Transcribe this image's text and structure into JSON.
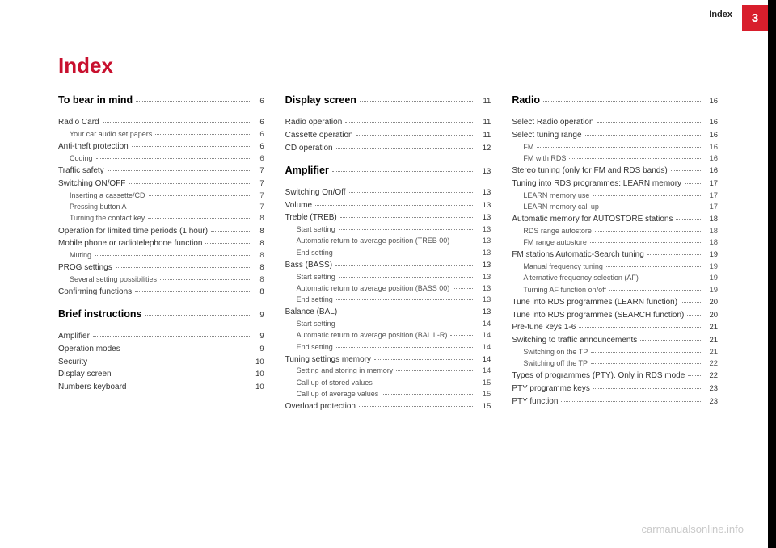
{
  "header": {
    "label": "Index",
    "tab_number": "3"
  },
  "title": "Index",
  "watermark": "carmanualsonline.info",
  "columns": [
    [
      {
        "type": "section",
        "label": "To bear in mind",
        "page": "6"
      },
      {
        "type": "spacer"
      },
      {
        "type": "item",
        "label": "Radio Card",
        "page": "6"
      },
      {
        "type": "sub",
        "label": "Your car audio set papers",
        "page": "6"
      },
      {
        "type": "item",
        "label": "Anti-theft protection",
        "page": "6"
      },
      {
        "type": "sub",
        "label": "Coding",
        "page": "6"
      },
      {
        "type": "item",
        "label": "Traffic safety",
        "page": "7"
      },
      {
        "type": "item",
        "label": "Switching ON/OFF",
        "page": "7"
      },
      {
        "type": "sub",
        "label": "Inserting a cassette/CD",
        "page": "7"
      },
      {
        "type": "sub",
        "label": "Pressing button  A",
        "page": "7"
      },
      {
        "type": "sub",
        "label": "Turning the contact key",
        "page": "8"
      },
      {
        "type": "item",
        "label": "Operation for limited time periods (1 hour)",
        "page": "8"
      },
      {
        "type": "item",
        "label": "Mobile phone or radiotelephone function",
        "page": "8"
      },
      {
        "type": "sub",
        "label": "Muting",
        "page": "8"
      },
      {
        "type": "item",
        "label": "PROG settings",
        "page": "8"
      },
      {
        "type": "sub",
        "label": "Several setting possibilities",
        "page": "8"
      },
      {
        "type": "item",
        "label": "Confirming functions",
        "page": "8"
      },
      {
        "type": "spacer"
      },
      {
        "type": "section",
        "label": "Brief instructions",
        "page": "9"
      },
      {
        "type": "spacer"
      },
      {
        "type": "item",
        "label": "Amplifier",
        "page": "9"
      },
      {
        "type": "item",
        "label": "Operation modes",
        "page": "9"
      },
      {
        "type": "item",
        "label": "Security",
        "page": "10"
      },
      {
        "type": "item",
        "label": "Display screen",
        "page": "10"
      },
      {
        "type": "item",
        "label": "Numbers keyboard",
        "page": "10"
      }
    ],
    [
      {
        "type": "section",
        "label": "Display screen",
        "page": "11"
      },
      {
        "type": "spacer"
      },
      {
        "type": "item",
        "label": "Radio operation",
        "page": "11"
      },
      {
        "type": "item",
        "label": "Cassette operation",
        "page": "11"
      },
      {
        "type": "item",
        "label": "CD operation",
        "page": "12"
      },
      {
        "type": "spacer"
      },
      {
        "type": "section",
        "label": "Amplifier",
        "page": "13"
      },
      {
        "type": "spacer"
      },
      {
        "type": "item",
        "label": "Switching On/Off",
        "page": "13"
      },
      {
        "type": "item",
        "label": "Volume",
        "page": "13"
      },
      {
        "type": "item",
        "label": "Treble (TREB)",
        "page": "13"
      },
      {
        "type": "sub",
        "label": "Start setting",
        "page": "13"
      },
      {
        "type": "sub",
        "label": "Automatic return to average position (TREB 00)",
        "page": "13"
      },
      {
        "type": "sub",
        "label": "End setting",
        "page": "13"
      },
      {
        "type": "item",
        "label": "Bass (BASS)",
        "page": "13"
      },
      {
        "type": "sub",
        "label": "Start setting",
        "page": "13"
      },
      {
        "type": "sub",
        "label": "Automatic return to average position (BASS 00)",
        "page": "13"
      },
      {
        "type": "sub",
        "label": "End setting",
        "page": "13"
      },
      {
        "type": "item",
        "label": "Balance (BAL)",
        "page": "13"
      },
      {
        "type": "sub",
        "label": "Start setting",
        "page": "14"
      },
      {
        "type": "sub",
        "label": "Automatic return to average position (BAL L-R)",
        "page": "14"
      },
      {
        "type": "sub",
        "label": "End setting",
        "page": "14"
      },
      {
        "type": "item",
        "label": "Tuning settings memory",
        "page": "14"
      },
      {
        "type": "sub",
        "label": "Setting and storing in memory",
        "page": "14"
      },
      {
        "type": "sub",
        "label": "Call up of stored values",
        "page": "15"
      },
      {
        "type": "sub",
        "label": "Call up of average values",
        "page": "15"
      },
      {
        "type": "item",
        "label": "Overload protection",
        "page": "15"
      }
    ],
    [
      {
        "type": "section",
        "label": "Radio",
        "page": "16"
      },
      {
        "type": "spacer"
      },
      {
        "type": "item",
        "label": "Select Radio operation",
        "page": "16"
      },
      {
        "type": "item",
        "label": "Select tuning range",
        "page": "16"
      },
      {
        "type": "sub",
        "label": "FM",
        "page": "16"
      },
      {
        "type": "sub",
        "label": "FM with RDS",
        "page": "16"
      },
      {
        "type": "item",
        "label": "Stereo tuning (only for FM and RDS bands)",
        "page": "16"
      },
      {
        "type": "item",
        "label": "Tuning into RDS programmes: LEARN memory",
        "page": "17"
      },
      {
        "type": "sub",
        "label": "LEARN memory use",
        "page": "17"
      },
      {
        "type": "sub",
        "label": "LEARN memory call up",
        "page": "17"
      },
      {
        "type": "item",
        "label": "Automatic memory for AUTOSTORE stations",
        "page": "18"
      },
      {
        "type": "sub",
        "label": "RDS range autostore",
        "page": "18"
      },
      {
        "type": "sub",
        "label": "FM range autostore",
        "page": "18"
      },
      {
        "type": "item",
        "label": "FM stations Automatic-Search tuning",
        "page": "19"
      },
      {
        "type": "sub",
        "label": "Manual frequency tuning",
        "page": "19"
      },
      {
        "type": "sub",
        "label": "Alternative frequency selection (AF)",
        "page": "19"
      },
      {
        "type": "sub",
        "label": "Turning AF function on/off",
        "page": "19"
      },
      {
        "type": "item",
        "label": "Tune into RDS programmes (LEARN function)",
        "page": "20"
      },
      {
        "type": "item",
        "label": "Tune into RDS programmes (SEARCH function)",
        "page": "20"
      },
      {
        "type": "item",
        "label": "Pre-tune keys 1-6",
        "page": "21"
      },
      {
        "type": "item",
        "label": "Switching to traffic announcements",
        "page": "21"
      },
      {
        "type": "sub",
        "label": "Switching on the TP",
        "page": "21"
      },
      {
        "type": "sub",
        "label": "Switching off the TP",
        "page": "22"
      },
      {
        "type": "item",
        "label": "Types of programmes (PTY). Only in RDS mode",
        "page": "22"
      },
      {
        "type": "item",
        "label": "PTY programme keys",
        "page": "23"
      },
      {
        "type": "item",
        "label": "PTY function",
        "page": "23"
      }
    ]
  ]
}
